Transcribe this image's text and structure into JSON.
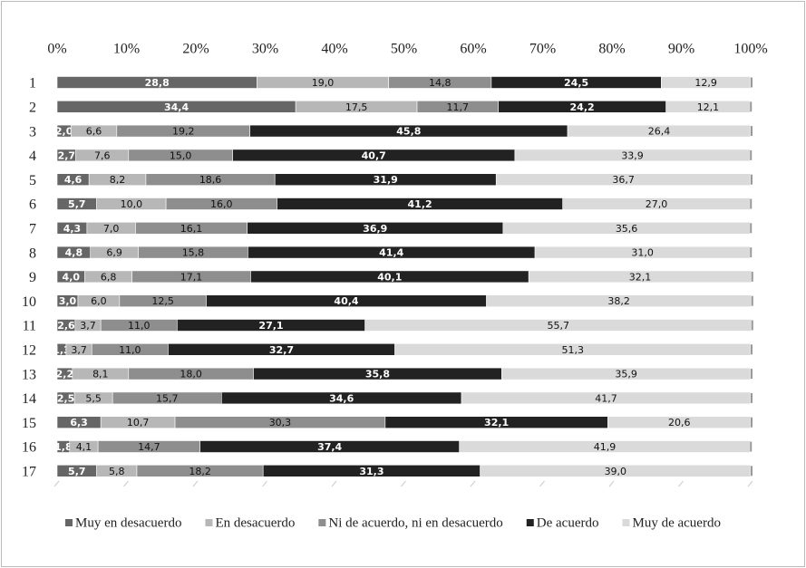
{
  "chart_data": {
    "type": "stacked-bar-100",
    "categories": [
      "1",
      "2",
      "3",
      "4",
      "5",
      "6",
      "7",
      "8",
      "9",
      "10",
      "11",
      "12",
      "13",
      "14",
      "15",
      "16",
      "17"
    ],
    "xlim": [
      0,
      100
    ],
    "xticks": [
      {
        "value": 0,
        "label": "0%"
      },
      {
        "value": 10,
        "label": "10%"
      },
      {
        "value": 20,
        "label": "20%"
      },
      {
        "value": 30,
        "label": "30%"
      },
      {
        "value": 40,
        "label": "40%"
      },
      {
        "value": 50,
        "label": "50%"
      },
      {
        "value": 60,
        "label": "60%"
      },
      {
        "value": 70,
        "label": "70%"
      },
      {
        "value": 80,
        "label": "80%"
      },
      {
        "value": 90,
        "label": "90%"
      },
      {
        "value": 100,
        "label": "100%"
      }
    ],
    "series": [
      {
        "name": "Muy en desacuerdo",
        "color": "#666666",
        "values": [
          28.8,
          34.4,
          2.0,
          2.7,
          4.6,
          5.7,
          4.3,
          4.8,
          4.0,
          3.0,
          2.6,
          1.3,
          2.2,
          2.5,
          6.3,
          1.8,
          5.7
        ],
        "value_labels": [
          "28,8",
          "34,4",
          "2,0",
          "2,7",
          "4,6",
          "5,7",
          "4,3",
          "4,8",
          "4,0",
          "3,0",
          "2,6",
          "1,3",
          "2,2",
          "2,5",
          "6,3",
          "1,8",
          "5,7"
        ]
      },
      {
        "name": "En desacuerdo",
        "color": "#b7b7b7",
        "values": [
          19.0,
          17.5,
          6.6,
          7.6,
          8.2,
          10.0,
          7.0,
          6.9,
          6.8,
          6.0,
          3.7,
          3.7,
          8.1,
          5.5,
          10.7,
          4.1,
          5.8
        ],
        "value_labels": [
          "19,0",
          "17,5",
          "6,6",
          "7,6",
          "8,2",
          "10,0",
          "7,0",
          "6,9",
          "6,8",
          "6,0",
          "3,7",
          "3,7",
          "8,1",
          "5,5",
          "10,7",
          "4,1",
          "5,8"
        ]
      },
      {
        "name": "Ni de acuerdo, ni en desacuerdo",
        "color": "#8e8e8e",
        "values": [
          14.8,
          11.7,
          19.2,
          15.0,
          18.6,
          16.0,
          16.1,
          15.8,
          17.1,
          12.5,
          11.0,
          11.0,
          18.0,
          15.7,
          30.3,
          14.7,
          18.2
        ],
        "value_labels": [
          "14,8",
          "11,7",
          "19,2",
          "15,0",
          "18,6",
          "16,0",
          "16,1",
          "15,8",
          "17,1",
          "12,5",
          "11,0",
          "11,0",
          "18,0",
          "15,7",
          "30,3",
          "14,7",
          "18,2"
        ]
      },
      {
        "name": "De acuerdo",
        "color": "#222222",
        "values": [
          24.5,
          24.2,
          45.8,
          40.7,
          31.9,
          41.2,
          36.9,
          41.4,
          40.1,
          40.4,
          27.1,
          32.7,
          35.8,
          34.6,
          32.1,
          37.4,
          31.3
        ],
        "value_labels": [
          "24,5",
          "24,2",
          "45,8",
          "40,7",
          "31,9",
          "41,2",
          "36,9",
          "41,4",
          "40,1",
          "40,4",
          "27,1",
          "32,7",
          "35,8",
          "34,6",
          "32,1",
          "37,4",
          "31,3"
        ]
      },
      {
        "name": "Muy de acuerdo",
        "color": "#dadada",
        "values": [
          12.9,
          12.1,
          26.4,
          33.9,
          36.7,
          27.0,
          35.6,
          31.0,
          32.1,
          38.2,
          55.7,
          51.3,
          35.9,
          41.7,
          20.6,
          41.9,
          39.0
        ],
        "value_labels": [
          "12,9",
          "12,1",
          "26,4",
          "33,9",
          "36,7",
          "27,0",
          "35,6",
          "31,0",
          "32,1",
          "38,2",
          "55,7",
          "51,3",
          "35,9",
          "41,7",
          "20,6",
          "41,9",
          "39,0"
        ]
      }
    ]
  }
}
